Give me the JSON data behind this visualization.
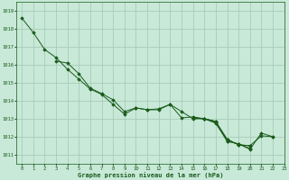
{
  "title": "Graphe pression niveau de la mer (hPa)",
  "bg_color": "#c8e8d8",
  "grid_color": "#a0c8b0",
  "line_color": "#1a5c1a",
  "marker_color": "#1a5c1a",
  "xlim": [
    -0.5,
    23
  ],
  "ylim": [
    1010.5,
    1019.5
  ],
  "yticks": [
    1011,
    1012,
    1013,
    1014,
    1015,
    1016,
    1017,
    1018,
    1019
  ],
  "xticks": [
    0,
    1,
    2,
    3,
    4,
    5,
    6,
    7,
    8,
    9,
    10,
    11,
    12,
    13,
    14,
    15,
    16,
    17,
    18,
    19,
    20,
    21,
    22,
    23
  ],
  "series": [
    [
      1018.6,
      1017.8,
      1016.85,
      1016.4,
      1015.75,
      1015.2,
      1014.65,
      1014.35,
      1013.8,
      1013.25,
      1013.6,
      1013.5,
      1013.55,
      1013.8,
      1013.05,
      1013.1,
      1013.0,
      1012.85,
      1011.75,
      1011.6,
      1011.3,
      1012.2,
      1012.0,
      null
    ],
    [
      null,
      null,
      null,
      1016.2,
      1016.1,
      1015.5,
      1014.7,
      1014.4,
      1014.05,
      1013.4,
      1013.6,
      1013.5,
      1013.5,
      1013.8,
      1013.4,
      1013.0,
      1013.0,
      1012.8,
      1011.85,
      1011.55,
      1011.5,
      1012.05,
      1012.0,
      null
    ],
    [
      null,
      null,
      null,
      null,
      null,
      null,
      null,
      null,
      null,
      null,
      null,
      null,
      null,
      null,
      null,
      1013.05,
      1013.0,
      1012.75,
      1011.75,
      1011.6,
      1011.35,
      null,
      null,
      null
    ],
    [
      null,
      null,
      null,
      null,
      null,
      null,
      null,
      null,
      null,
      null,
      null,
      null,
      null,
      null,
      null,
      1013.05,
      1013.0,
      1012.85,
      1011.85,
      1011.55,
      1011.5,
      null,
      null,
      null
    ]
  ]
}
